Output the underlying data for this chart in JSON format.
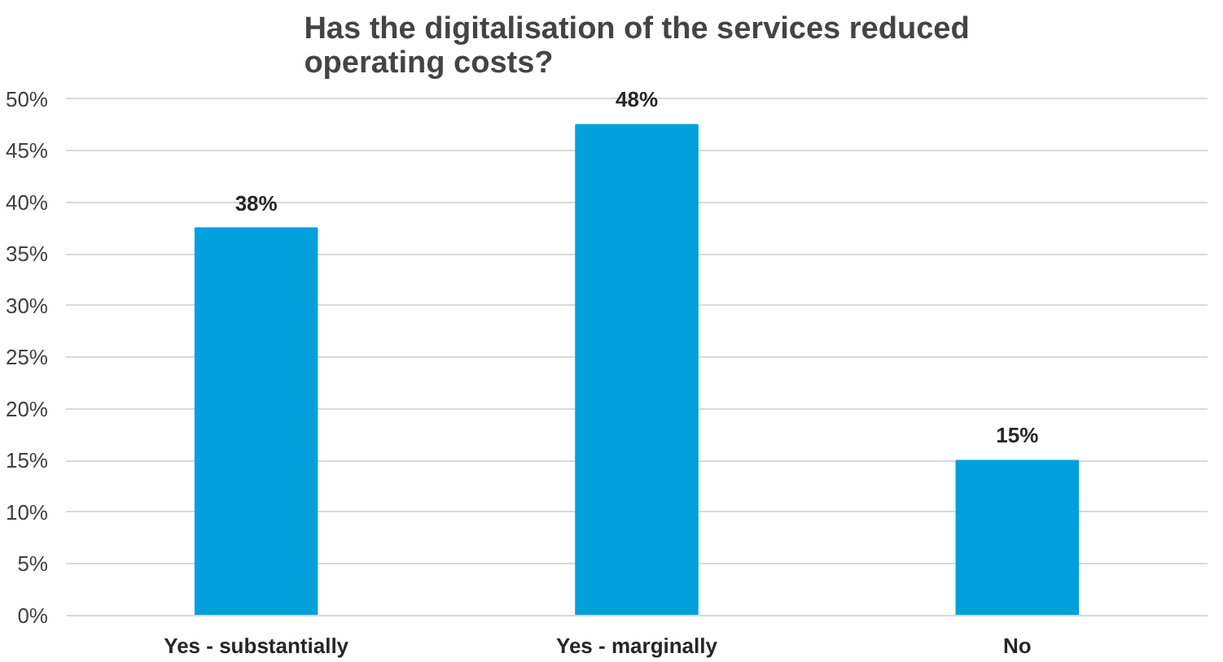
{
  "chart_data": {
    "type": "bar",
    "title": "Has the digitalisation of the services reduced operating costs?",
    "categories": [
      "Yes - substantially",
      "Yes - marginally",
      "No"
    ],
    "values": [
      37.5,
      47.5,
      15
    ],
    "value_labels": [
      "38%",
      "48%",
      "15%"
    ],
    "color": "#00a0dd",
    "ylim": [
      0,
      50
    ],
    "yticks": [
      {
        "value": 0,
        "label": "0%"
      },
      {
        "value": 5,
        "label": "5%"
      },
      {
        "value": 10,
        "label": "10%"
      },
      {
        "value": 15,
        "label": "15%"
      },
      {
        "value": 20,
        "label": "20%"
      },
      {
        "value": 25,
        "label": "25%"
      },
      {
        "value": 30,
        "label": "30%"
      },
      {
        "value": 35,
        "label": "35%"
      },
      {
        "value": 40,
        "label": "40%"
      },
      {
        "value": 45,
        "label": "45%"
      },
      {
        "value": 50,
        "label": "50%"
      }
    ],
    "grid": "y"
  }
}
